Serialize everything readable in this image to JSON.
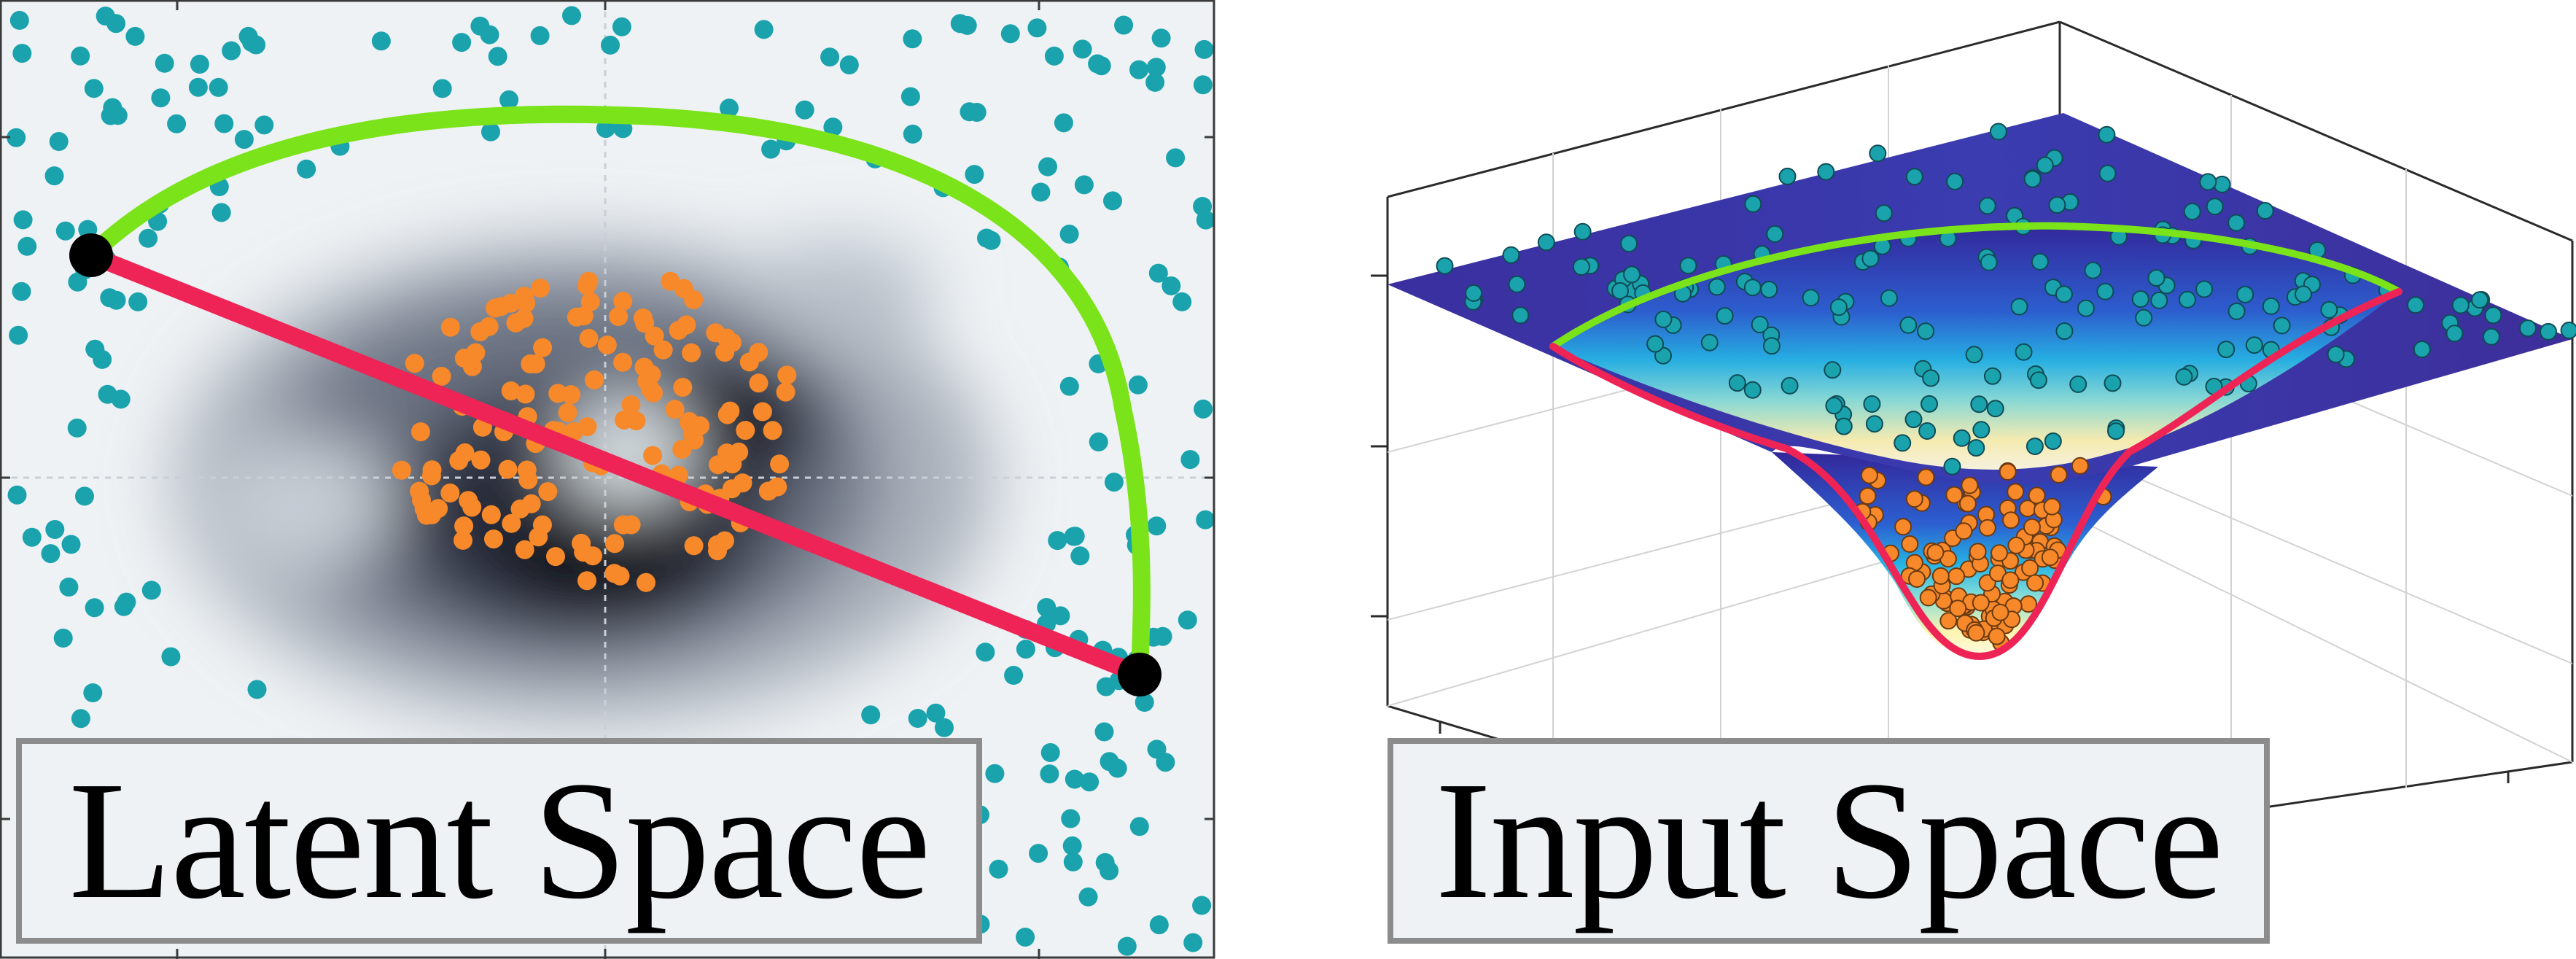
{
  "latent_panel": {
    "caption": "Latent Space",
    "colors": {
      "outer_points": "#1aa3ad",
      "inner_points": "#f7892a",
      "geodesic": "#7be319",
      "straight_line": "#ee2456",
      "endpoints": "#000000",
      "density_dark": "#11111f",
      "density_light": "#eef2f5"
    }
  },
  "input_panel": {
    "caption": "Input Space",
    "colors": {
      "surface_top": "#3a2e9c",
      "surface_mid": "#2aa9dc",
      "surface_bottom": "#fff6b0",
      "outer_points": "#1aa3ad",
      "inner_points": "#f7892a",
      "geodesic": "#7be319",
      "straight_line": "#ee2456"
    }
  }
}
